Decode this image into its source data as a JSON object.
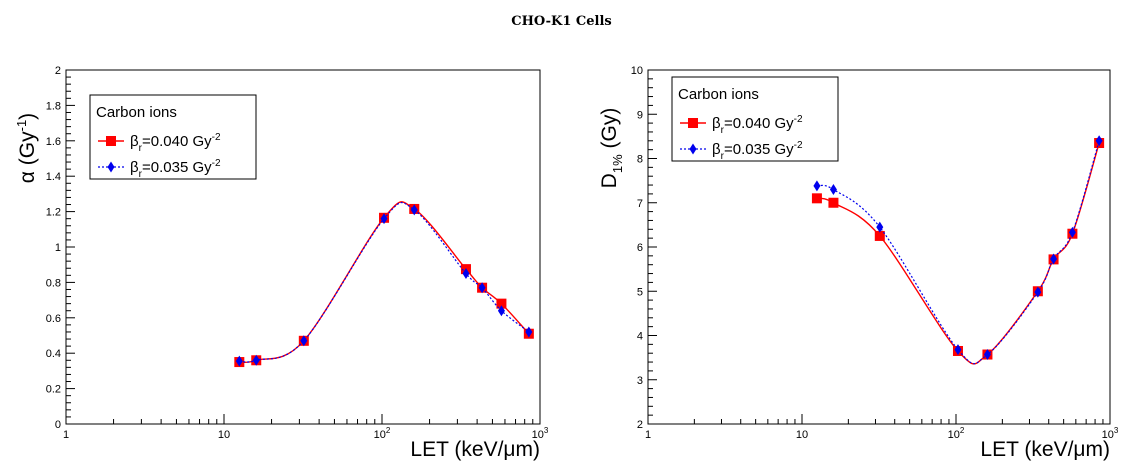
{
  "figure_title": "CHO-K1 Cells",
  "colors": {
    "red_series": "#ff0000",
    "blue_series": "#0000ee",
    "frame": "#000000"
  },
  "chart_data": [
    {
      "type": "line",
      "xlabel": "LET (keV/μm)",
      "ylabel_main": "α (Gy",
      "ylabel_sup": "-1",
      "ylabel_close": ")",
      "x_scale": "log",
      "xlim": [
        1,
        1000
      ],
      "ylim": [
        0,
        2
      ],
      "y_ticks": [
        0,
        0.2,
        0.4,
        0.6,
        0.8,
        1,
        1.2,
        1.4,
        1.6,
        1.8,
        2
      ],
      "y_tick_labels": [
        "0",
        "0.2",
        "0.4",
        "0.6",
        "0.8",
        "1",
        "1.2",
        "1.4",
        "1.6",
        "1.8",
        "2"
      ],
      "x_tick_labels": [
        {
          "value": 1,
          "base": "1",
          "sup": ""
        },
        {
          "value": 10,
          "base": "10",
          "sup": ""
        },
        {
          "value": 100,
          "base": "10",
          "sup": "2"
        },
        {
          "value": 1000,
          "base": "10",
          "sup": "3"
        }
      ],
      "grid": false,
      "legend_position": "top-left",
      "legend_header": "Carbon ions",
      "series": [
        {
          "name": "β",
          "name_sub": "r",
          "name_rest": "=0.040 Gy",
          "name_sup": "-2",
          "marker": "square",
          "line": "solid",
          "x": [
            12.5,
            16,
            32,
            103,
            160,
            340,
            430,
            570,
            850
          ],
          "y": [
            0.35,
            0.36,
            0.47,
            1.165,
            1.215,
            0.875,
            0.77,
            0.68,
            0.51
          ]
        },
        {
          "name": "β",
          "name_sub": "r",
          "name_rest": "=0.035 Gy",
          "name_sup": "-2",
          "marker": "diamond",
          "line": "dotted",
          "x": [
            12.5,
            16,
            32,
            103,
            160,
            340,
            430,
            570,
            850
          ],
          "y": [
            0.355,
            0.36,
            0.47,
            1.16,
            1.21,
            0.85,
            0.77,
            0.64,
            0.52
          ]
        }
      ]
    },
    {
      "type": "line",
      "xlabel": "LET (keV/μm)",
      "ylabel_main": "D",
      "ylabel_sub": "1%",
      "ylabel_close": " (Gy)",
      "x_scale": "log",
      "xlim": [
        1,
        1000
      ],
      "ylim": [
        2,
        10
      ],
      "y_ticks": [
        2,
        3,
        4,
        5,
        6,
        7,
        8,
        9,
        10
      ],
      "y_tick_labels": [
        "2",
        "3",
        "4",
        "5",
        "6",
        "7",
        "8",
        "9",
        "10"
      ],
      "x_tick_labels": [
        {
          "value": 1,
          "base": "1",
          "sup": ""
        },
        {
          "value": 10,
          "base": "10",
          "sup": ""
        },
        {
          "value": 100,
          "base": "10",
          "sup": "2"
        },
        {
          "value": 1000,
          "base": "10",
          "sup": "3"
        }
      ],
      "grid": false,
      "legend_position": "top-left",
      "legend_header": "Carbon ions",
      "series": [
        {
          "name": "β",
          "name_sub": "r",
          "name_rest": "=0.040 Gy",
          "name_sup": "-2",
          "marker": "square",
          "line": "solid",
          "x": [
            12.5,
            16,
            32,
            103,
            160,
            340,
            430,
            570,
            850
          ],
          "y": [
            7.1,
            7.0,
            6.25,
            3.65,
            3.57,
            5.0,
            5.72,
            6.3,
            8.35
          ]
        },
        {
          "name": "β",
          "name_sub": "r",
          "name_rest": "=0.035 Gy",
          "name_sup": "-2",
          "marker": "diamond",
          "line": "dotted",
          "x": [
            12.5,
            16,
            32,
            103,
            160,
            340,
            430,
            570,
            850
          ],
          "y": [
            7.38,
            7.3,
            6.45,
            3.68,
            3.57,
            4.98,
            5.73,
            6.33,
            8.4
          ]
        }
      ]
    }
  ]
}
